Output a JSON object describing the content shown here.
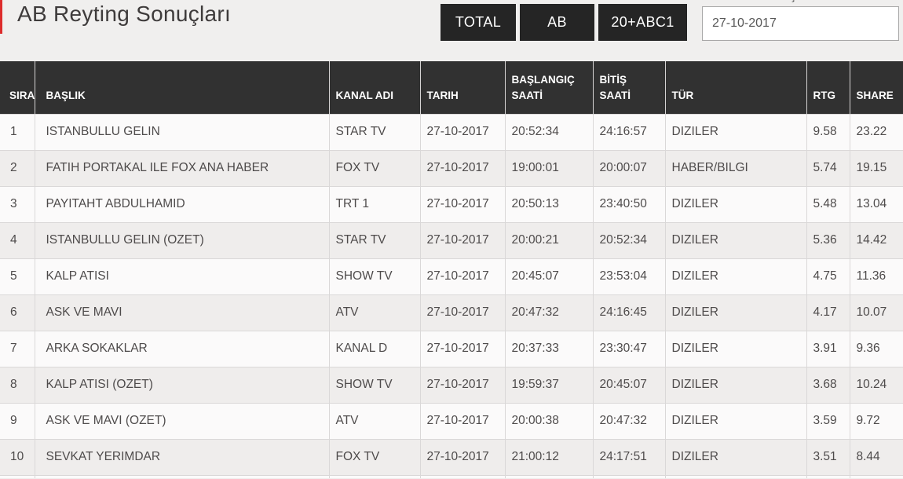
{
  "header": {
    "title": "AB Reyting Sonuçları",
    "buttons": [
      "TOTAL",
      "AB",
      "20+ABC1"
    ],
    "date_value": "27-10-2017",
    "date_label_fragment": "ş"
  },
  "colors": {
    "accent": "#dd2c2c",
    "table_header_bg": "#313131",
    "button_bg": "#252525",
    "page_bg": "#f0efee"
  },
  "table": {
    "columns": [
      "SIRA",
      "BAŞLIK",
      "KANAL ADI",
      "TARIH",
      "BAŞLANGIÇ SAATİ",
      "BİTİŞ SAATİ",
      "TÜR",
      "RTG",
      "SHARE"
    ],
    "rows": [
      [
        "1",
        "ISTANBULLU GELIN",
        "STAR TV",
        "27-10-2017",
        "20:52:34",
        "24:16:57",
        "DIZILER",
        "9.58",
        "23.22"
      ],
      [
        "2",
        "FATIH PORTAKAL ILE FOX ANA HABER",
        "FOX TV",
        "27-10-2017",
        "19:00:01",
        "20:00:07",
        "HABER/BILGI",
        "5.74",
        "19.15"
      ],
      [
        "3",
        "PAYITAHT ABDULHAMID",
        "TRT 1",
        "27-10-2017",
        "20:50:13",
        "23:40:50",
        "DIZILER",
        "5.48",
        "13.04"
      ],
      [
        "4",
        "ISTANBULLU GELIN (OZET)",
        "STAR TV",
        "27-10-2017",
        "20:00:21",
        "20:52:34",
        "DIZILER",
        "5.36",
        "14.42"
      ],
      [
        "5",
        "KALP ATISI",
        "SHOW TV",
        "27-10-2017",
        "20:45:07",
        "23:53:04",
        "DIZILER",
        "4.75",
        "11.36"
      ],
      [
        "6",
        "ASK VE MAVI",
        "ATV",
        "27-10-2017",
        "20:47:32",
        "24:16:45",
        "DIZILER",
        "4.17",
        "10.07"
      ],
      [
        "7",
        "ARKA SOKAKLAR",
        "KANAL D",
        "27-10-2017",
        "20:37:33",
        "23:30:47",
        "DIZILER",
        "3.91",
        "9.36"
      ],
      [
        "8",
        "KALP ATISI (OZET)",
        "SHOW TV",
        "27-10-2017",
        "19:59:37",
        "20:45:07",
        "DIZILER",
        "3.68",
        "10.24"
      ],
      [
        "9",
        "ASK VE MAVI (OZET)",
        "ATV",
        "27-10-2017",
        "20:00:38",
        "20:47:32",
        "DIZILER",
        "3.59",
        "9.72"
      ],
      [
        "10",
        "SEVKAT YERIMDAR",
        "FOX TV",
        "27-10-2017",
        "21:00:12",
        "24:17:51",
        "DIZILER",
        "3.51",
        "8.44"
      ]
    ]
  }
}
